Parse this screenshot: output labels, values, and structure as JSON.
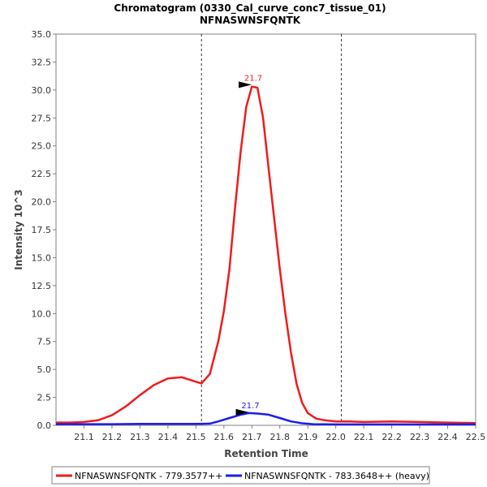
{
  "chart_data": {
    "type": "line",
    "title": "Chromatogram (0330_Cal_curve_conc7_tissue_01)",
    "subtitle": "NFNASWNSFQNTK",
    "xlabel": "Retention Time",
    "ylabel": "Intensity 10^3",
    "xlim": [
      21.0,
      22.5
    ],
    "ylim": [
      0,
      35.0
    ],
    "x_ticks": [
      "21.1",
      "21.2",
      "21.3",
      "21.4",
      "21.5",
      "21.6",
      "21.7",
      "21.8",
      "21.9",
      "22.0",
      "22.1",
      "22.2",
      "22.3",
      "22.4",
      "22.5"
    ],
    "y_ticks": [
      "0.0",
      "2.5",
      "5.0",
      "7.5",
      "10.0",
      "12.5",
      "15.0",
      "17.5",
      "20.0",
      "22.5",
      "25.0",
      "27.5",
      "30.0",
      "32.5",
      "35.0"
    ],
    "boundaries": [
      21.52,
      22.02
    ],
    "legend_position": "bottom",
    "series": [
      {
        "name": "NFNASWNSFQNTK - 779.3577++",
        "color": "#ee1c1c",
        "peak_label": "21.7",
        "peak": [
          21.705,
          30.4
        ],
        "points": [
          [
            21.0,
            0.25
          ],
          [
            21.05,
            0.25
          ],
          [
            21.1,
            0.3
          ],
          [
            21.15,
            0.45
          ],
          [
            21.2,
            0.9
          ],
          [
            21.25,
            1.7
          ],
          [
            21.3,
            2.7
          ],
          [
            21.35,
            3.6
          ],
          [
            21.4,
            4.2
          ],
          [
            21.45,
            4.3
          ],
          [
            21.5,
            3.9
          ],
          [
            21.52,
            3.75
          ],
          [
            21.55,
            4.6
          ],
          [
            21.58,
            7.5
          ],
          [
            21.6,
            10.2
          ],
          [
            21.62,
            14.0
          ],
          [
            21.64,
            19.5
          ],
          [
            21.66,
            24.5
          ],
          [
            21.68,
            28.5
          ],
          [
            21.7,
            30.3
          ],
          [
            21.72,
            30.2
          ],
          [
            21.74,
            27.5
          ],
          [
            21.76,
            23.0
          ],
          [
            21.78,
            18.5
          ],
          [
            21.8,
            14.0
          ],
          [
            21.82,
            10.0
          ],
          [
            21.84,
            6.5
          ],
          [
            21.86,
            3.7
          ],
          [
            21.88,
            2.0
          ],
          [
            21.9,
            1.1
          ],
          [
            21.93,
            0.6
          ],
          [
            21.96,
            0.45
          ],
          [
            22.0,
            0.35
          ],
          [
            22.05,
            0.35
          ],
          [
            22.1,
            0.3
          ],
          [
            22.2,
            0.35
          ],
          [
            22.3,
            0.3
          ],
          [
            22.4,
            0.25
          ],
          [
            22.5,
            0.2
          ]
        ]
      },
      {
        "name": "NFNASWNSFQNTK - 783.3648++ (heavy)",
        "color": "#1c1cee",
        "peak_label": "21.7",
        "peak": [
          21.695,
          1.1
        ],
        "points": [
          [
            21.0,
            0.1
          ],
          [
            21.1,
            0.1
          ],
          [
            21.2,
            0.1
          ],
          [
            21.3,
            0.12
          ],
          [
            21.4,
            0.12
          ],
          [
            21.5,
            0.12
          ],
          [
            21.55,
            0.15
          ],
          [
            21.58,
            0.35
          ],
          [
            21.62,
            0.65
          ],
          [
            21.66,
            0.95
          ],
          [
            21.69,
            1.1
          ],
          [
            21.72,
            1.05
          ],
          [
            21.76,
            0.95
          ],
          [
            21.8,
            0.65
          ],
          [
            21.84,
            0.35
          ],
          [
            21.88,
            0.18
          ],
          [
            21.92,
            0.1
          ],
          [
            22.0,
            0.08
          ],
          [
            22.1,
            0.08
          ],
          [
            22.2,
            0.08
          ],
          [
            22.3,
            0.08
          ],
          [
            22.4,
            0.08
          ],
          [
            22.5,
            0.08
          ]
        ]
      }
    ]
  }
}
